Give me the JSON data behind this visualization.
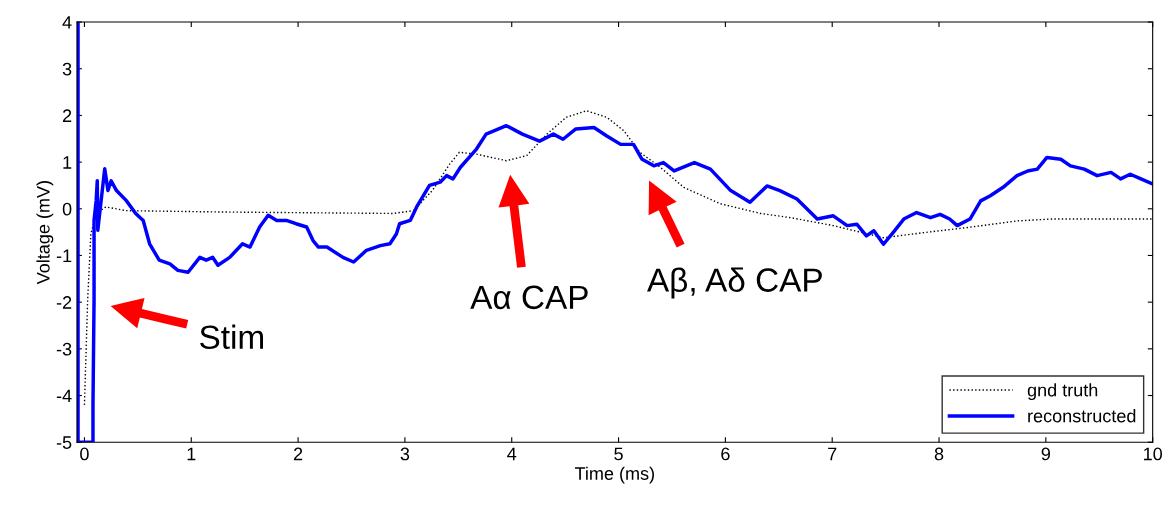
{
  "chart_data": {
    "type": "line",
    "xlabel": "Time (ms)",
    "ylabel": "Voltage (mV)",
    "xlim": [
      -0.07,
      10
    ],
    "ylim": [
      -5,
      4
    ],
    "xticks": [
      0,
      1,
      2,
      3,
      4,
      5,
      6,
      7,
      8,
      9,
      10
    ],
    "yticks": [
      -5,
      -4,
      -3,
      -2,
      -1,
      0,
      1,
      2,
      3,
      4
    ],
    "grid": false,
    "legend": "bottom right",
    "marker": "none",
    "series": [
      {
        "name": "gnd truth",
        "color": "#000000",
        "line_style": "dotted",
        "x": [
          0.0,
          0.03,
          0.06,
          0.11,
          0.2,
          0.39,
          1.33,
          2.89,
          3.08,
          3.26,
          3.42,
          3.51,
          3.67,
          3.95,
          4.14,
          4.33,
          4.51,
          4.7,
          4.89,
          5.05,
          5.2,
          5.39,
          5.61,
          5.95,
          6.33,
          6.61,
          7.01,
          7.48,
          7.86,
          8.27,
          8.73,
          9.04,
          10.0
        ],
        "values": [
          -4.2,
          -1.96,
          -0.54,
          -0.1,
          0.04,
          -0.04,
          -0.07,
          -0.1,
          -0.04,
          0.4,
          0.96,
          1.21,
          1.17,
          1.03,
          1.14,
          1.6,
          1.96,
          2.1,
          1.96,
          1.67,
          1.21,
          0.89,
          0.46,
          0.11,
          -0.1,
          -0.19,
          -0.36,
          -0.62,
          -0.51,
          -0.4,
          -0.26,
          -0.22,
          -0.22
        ]
      },
      {
        "name": "reconstructed",
        "color": "#0000ff",
        "line_style": "solid",
        "x": [
          -0.06,
          -0.06,
          0.08,
          0.08,
          0.09,
          0.09,
          0.11,
          0.12,
          0.125,
          0.16,
          0.19,
          0.22,
          0.25,
          0.3,
          0.39,
          0.48,
          0.55,
          0.61,
          0.7,
          0.8,
          0.875,
          0.97,
          1.08,
          1.14,
          1.2,
          1.25,
          1.36,
          1.48,
          1.55,
          1.64,
          1.72,
          1.8,
          1.89,
          1.98,
          2.08,
          2.14,
          2.19,
          2.27,
          2.42,
          2.52,
          2.64,
          2.77,
          2.86,
          2.92,
          2.95,
          3.05,
          3.11,
          3.23,
          3.33,
          3.39,
          3.45,
          3.52,
          3.67,
          3.76,
          3.95,
          4.1,
          4.26,
          4.39,
          4.48,
          4.6,
          4.77,
          4.89,
          5.02,
          5.14,
          5.22,
          5.33,
          5.42,
          5.52,
          5.71,
          5.86,
          6.05,
          6.23,
          6.39,
          6.51,
          6.67,
          6.86,
          7.01,
          7.14,
          7.23,
          7.32,
          7.39,
          7.48,
          7.57,
          7.67,
          7.79,
          7.92,
          8.01,
          8.1,
          8.17,
          8.29,
          8.39,
          8.48,
          8.6,
          8.73,
          8.83,
          8.92,
          9.01,
          9.14,
          9.23,
          9.36,
          9.48,
          9.61,
          9.7,
          9.79,
          9.89,
          10.0
        ],
        "values": [
          4,
          -5,
          -5,
          -4.2,
          -1.96,
          -0.25,
          0.18,
          0.6,
          -0.46,
          0.25,
          0.86,
          0.39,
          0.6,
          0.39,
          0.18,
          -0.1,
          -0.25,
          -0.75,
          -1.1,
          -1.18,
          -1.32,
          -1.36,
          -1.04,
          -1.1,
          -1.04,
          -1.21,
          -1.04,
          -0.75,
          -0.82,
          -0.39,
          -0.14,
          -0.25,
          -0.25,
          -0.32,
          -0.39,
          -0.68,
          -0.82,
          -0.82,
          -1.04,
          -1.14,
          -0.89,
          -0.79,
          -0.75,
          -0.54,
          -0.32,
          -0.25,
          0.04,
          0.5,
          0.57,
          0.71,
          0.64,
          0.89,
          1.28,
          1.6,
          1.78,
          1.6,
          1.45,
          1.6,
          1.49,
          1.71,
          1.74,
          1.56,
          1.38,
          1.38,
          1.06,
          0.92,
          0.99,
          0.81,
          0.99,
          0.85,
          0.39,
          0.14,
          0.49,
          0.39,
          0.21,
          -0.22,
          -0.15,
          -0.36,
          -0.33,
          -0.58,
          -0.47,
          -0.76,
          -0.51,
          -0.22,
          -0.08,
          -0.19,
          -0.12,
          -0.22,
          -0.36,
          -0.22,
          0.17,
          0.28,
          0.46,
          0.71,
          0.81,
          0.85,
          1.1,
          1.06,
          0.92,
          0.85,
          0.71,
          0.78,
          0.64,
          0.74,
          0.64,
          0.53
        ]
      }
    ],
    "annotations": [
      "Stim",
      "Aα CAP",
      "Aβ, Aδ CAP"
    ]
  }
}
